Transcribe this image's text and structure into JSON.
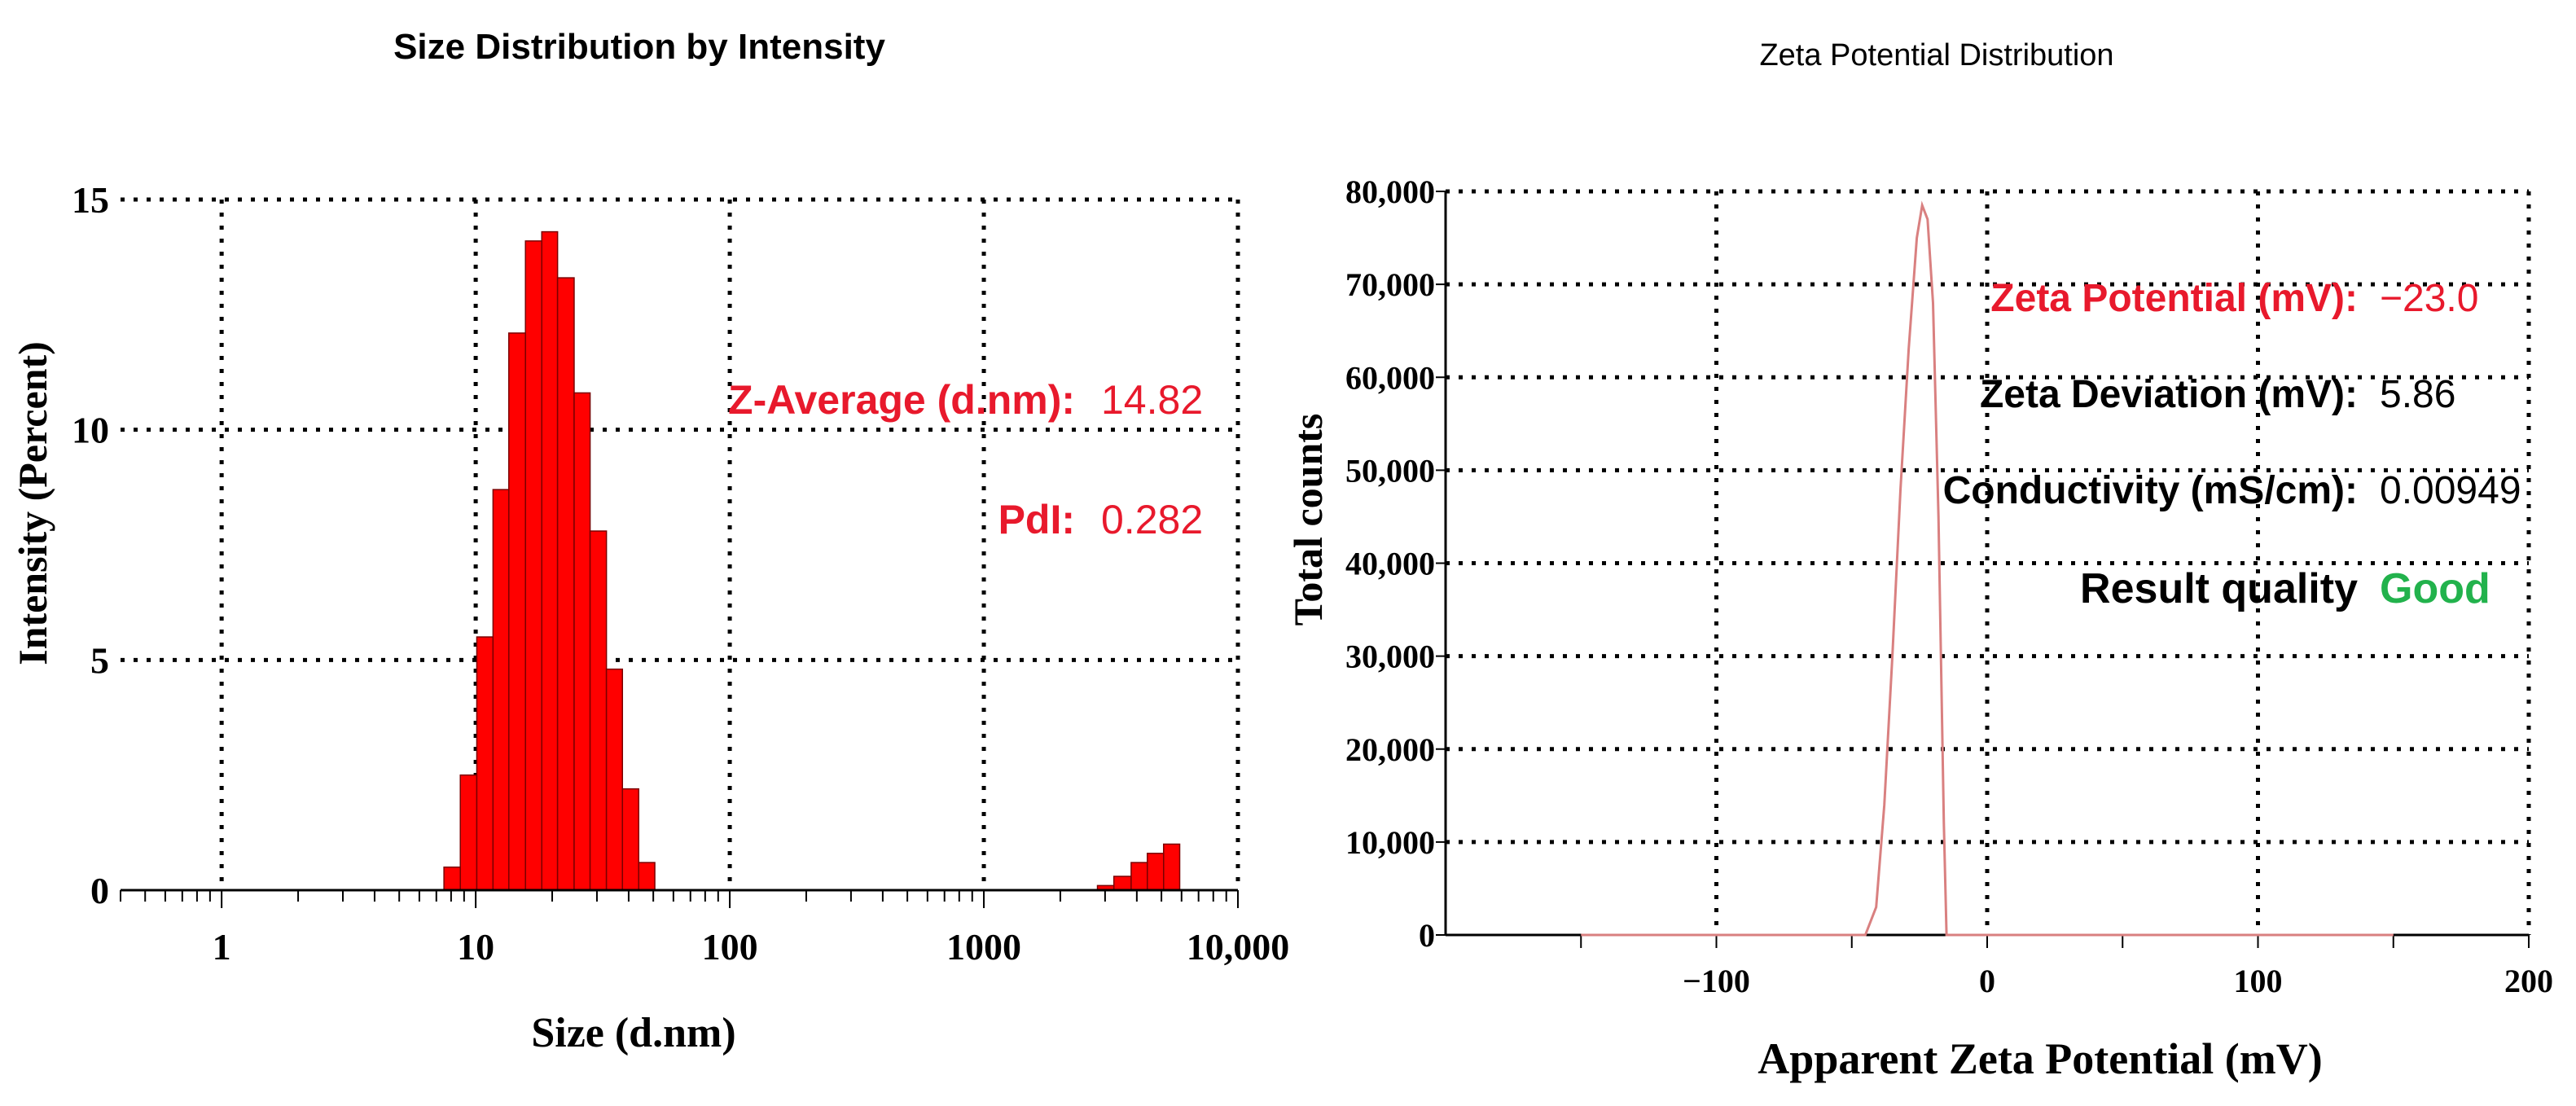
{
  "colors": {
    "bar_fill": "#ff0000",
    "accent_red": "#e8192c",
    "good_green": "#22b24c",
    "zeta_line": "#d98080",
    "axis": "#000000"
  },
  "size_stats": {
    "z_average_label": "Z-Average (d.nm):",
    "z_average_value": "14.82",
    "pdi_label": "PdI:",
    "pdi_value": "0.282"
  },
  "zeta_stats": {
    "potential_label": "Zeta Potential (mV):",
    "potential_value": "−23.0",
    "deviation_label": "Zeta Deviation (mV):",
    "deviation_value": "5.86",
    "conductivity_label": "Conductivity (mS/cm):",
    "conductivity_value": "0.00949",
    "quality_label": "Result quality",
    "quality_value": "Good"
  },
  "chart_data": [
    {
      "type": "bar",
      "title": "Size Distribution by Intensity",
      "xlabel": "Size (d.nm)",
      "ylabel": "Intensity (Percent)",
      "x_scale": "log",
      "xlim": [
        0.4,
        10000
      ],
      "ylim": [
        0,
        15
      ],
      "grid": true,
      "x_ticks": [
        1,
        10,
        100,
        1000,
        10000
      ],
      "x_tick_labels": [
        "1",
        "10",
        "100",
        "1000",
        "10,000"
      ],
      "y_ticks": [
        0,
        5,
        10,
        15
      ],
      "y_tick_labels": [
        "0",
        "5",
        "10",
        "15"
      ],
      "bins": [
        {
          "x0": 7.5,
          "x1": 8.7,
          "value": 0.5
        },
        {
          "x0": 8.7,
          "x1": 10.1,
          "value": 2.5
        },
        {
          "x0": 10.1,
          "x1": 11.7,
          "value": 5.5
        },
        {
          "x0": 11.7,
          "x1": 13.5,
          "value": 8.7
        },
        {
          "x0": 13.5,
          "x1": 15.7,
          "value": 12.1
        },
        {
          "x0": 15.7,
          "x1": 18.2,
          "value": 14.1
        },
        {
          "x0": 18.2,
          "x1": 21.0,
          "value": 14.3
        },
        {
          "x0": 21.0,
          "x1": 24.4,
          "value": 13.3
        },
        {
          "x0": 24.4,
          "x1": 28.2,
          "value": 10.8
        },
        {
          "x0": 28.2,
          "x1": 32.7,
          "value": 7.8
        },
        {
          "x0": 32.7,
          "x1": 37.8,
          "value": 4.8
        },
        {
          "x0": 37.8,
          "x1": 43.8,
          "value": 2.2
        },
        {
          "x0": 43.8,
          "x1": 50.7,
          "value": 0.6
        },
        {
          "x0": 2800,
          "x1": 3250,
          "value": 0.1
        },
        {
          "x0": 3250,
          "x1": 3800,
          "value": 0.3
        },
        {
          "x0": 3800,
          "x1": 4400,
          "value": 0.6
        },
        {
          "x0": 4400,
          "x1": 5100,
          "value": 0.8
        },
        {
          "x0": 5100,
          "x1": 5900,
          "value": 1.0
        }
      ]
    },
    {
      "type": "line",
      "title": "Zeta Potential Distribution",
      "xlabel": "Apparent Zeta Potential (mV)",
      "ylabel": "Total counts",
      "xlim": [
        -200,
        200
      ],
      "ylim": [
        0,
        80000
      ],
      "grid": true,
      "x_ticks": [
        -100,
        0,
        100,
        200
      ],
      "x_tick_labels": [
        "−100",
        "0",
        "100",
        "200"
      ],
      "y_ticks": [
        0,
        10000,
        20000,
        30000,
        40000,
        50000,
        60000,
        70000,
        80000
      ],
      "y_tick_labels": [
        "0",
        "10,000",
        "20,000",
        "30,000",
        "40,000",
        "50,000",
        "60,000",
        "70,000",
        "80,000"
      ],
      "series": [
        {
          "x": [
            -150,
            -45,
            -41,
            -38,
            -35,
            -32,
            -29,
            -26,
            -24,
            -22,
            -20,
            -18,
            -16,
            -15,
            -12,
            150
          ],
          "y": [
            0,
            0,
            3000,
            14000,
            30000,
            48000,
            63000,
            75000,
            78500,
            77000,
            68000,
            45000,
            12000,
            0,
            0,
            0
          ]
        }
      ]
    }
  ]
}
